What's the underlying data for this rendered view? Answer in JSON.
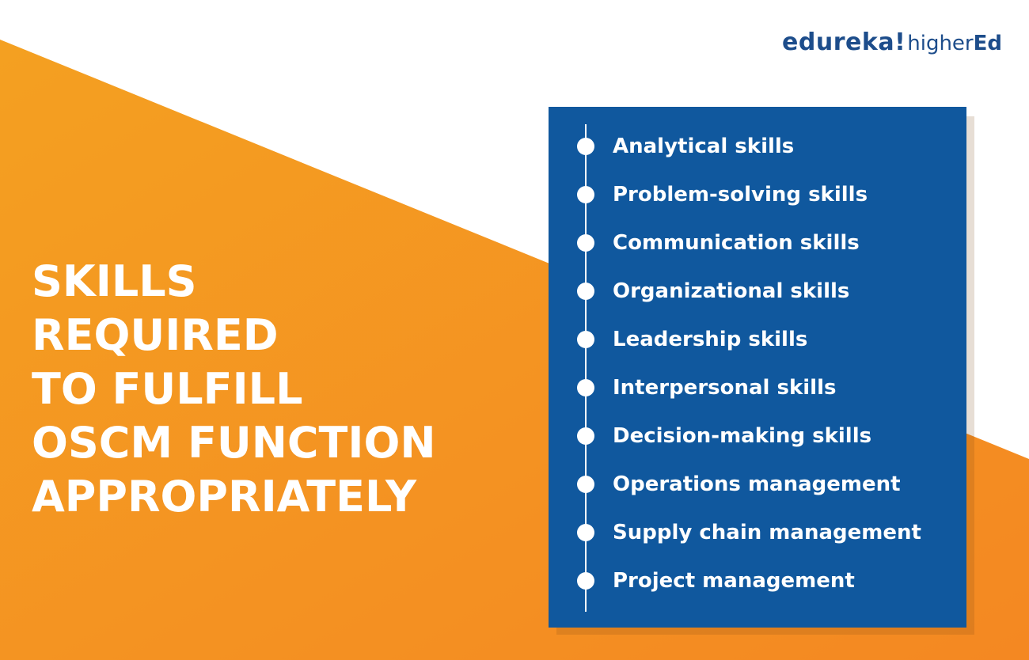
{
  "logo": {
    "main": "edureka!",
    "sub_prefix": "higher",
    "sub_suffix": "Ed"
  },
  "headline": {
    "lines": [
      "SKILLS",
      "REQUIRED",
      "TO FULFILL",
      "OSCM FUNCTION",
      "APPROPRIATELY"
    ]
  },
  "skills": [
    "Analytical skills",
    "Problem-solving skills",
    "Communication skills",
    "Organizational skills",
    "Leadership skills",
    "Interpersonal skills",
    "Decision-making skills",
    "Operations management",
    "Supply chain management",
    "Project management"
  ],
  "colors": {
    "orange_light": "#f4a021",
    "orange_dark": "#f48a23",
    "panel_blue": "#10589e",
    "logo_blue": "#1d4d8b",
    "text_white": "#ffffff"
  }
}
